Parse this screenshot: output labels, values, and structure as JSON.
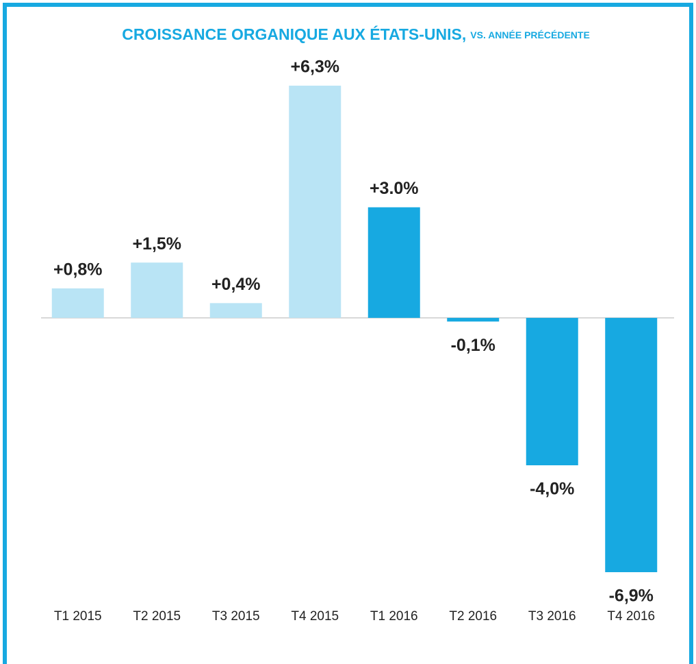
{
  "chart_data": {
    "type": "bar",
    "title": "CROISSANCE ORGANIQUE AUX ÉTATS-UNIS,",
    "subtitle": "VS. ANNÉE PRÉCÉDENTE",
    "categories": [
      "T1 2015",
      "T2 2015",
      "T3 2015",
      "T4 2015",
      "T1 2016",
      "T2 2016",
      "T3 2016",
      "T4 2016"
    ],
    "values": [
      0.8,
      1.5,
      0.4,
      6.3,
      3.0,
      -0.1,
      -4.0,
      -6.9
    ],
    "value_labels": [
      "+0,8%",
      "+1,5%",
      "+0,4%",
      "+6,3%",
      "+3.0%",
      "-0,1%",
      "-4,0%",
      "-6,9%"
    ],
    "colors": [
      "#b9e4f5",
      "#b9e4f5",
      "#b9e4f5",
      "#b9e4f5",
      "#17a9e1",
      "#17a9e1",
      "#17a9e1",
      "#17a9e1"
    ]
  }
}
